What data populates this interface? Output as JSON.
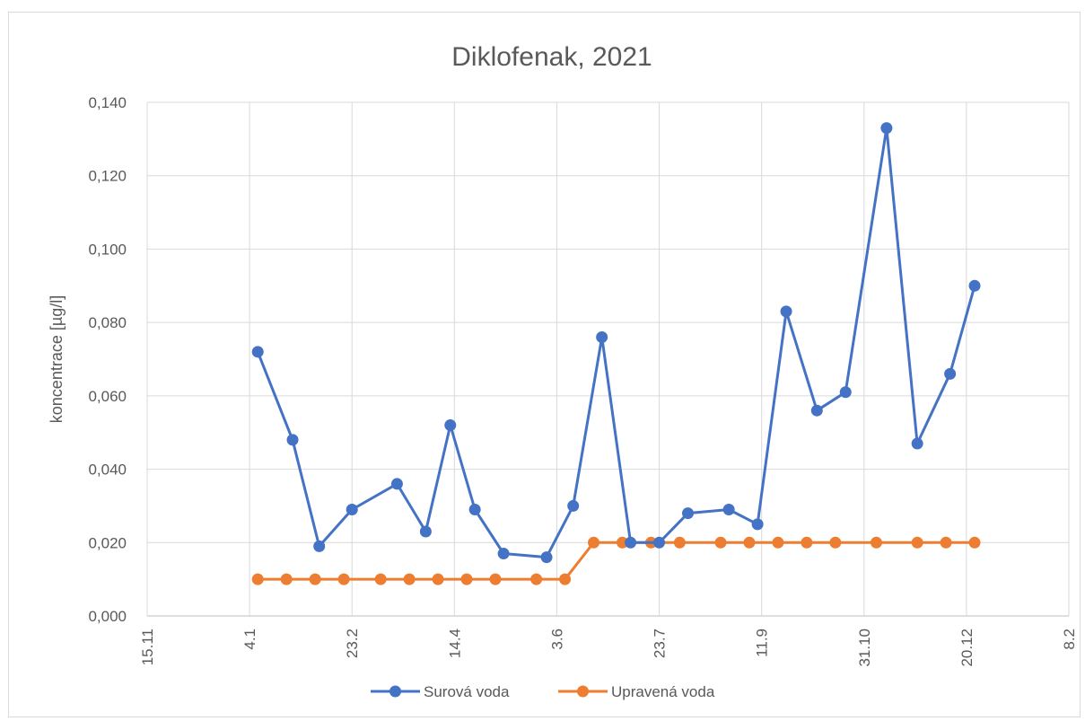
{
  "chart_data": {
    "type": "line",
    "title": "Diklofenak, 2021",
    "ylabel": "koncentrace [µg/l]",
    "xlabel": "",
    "x_tick_labels": [
      "15.11",
      "4.1",
      "23.2",
      "14.4",
      "3.6",
      "23.7",
      "11.9",
      "31.10",
      "20.12",
      "8.2"
    ],
    "y_tick_labels": [
      "0,000",
      "0,020",
      "0,040",
      "0,060",
      "0,080",
      "0,100",
      "0,120",
      "0,140"
    ],
    "x_axis": {
      "type": "date",
      "min": "2020-11-15",
      "max": "2022-02-08"
    },
    "ylim": [
      0,
      0.14
    ],
    "grid": true,
    "legend_position": "bottom",
    "series": [
      {
        "name": "Surová voda",
        "color": "#4472c4",
        "points": [
          {
            "x": "2021-01-08",
            "y": 0.072
          },
          {
            "x": "2021-01-25",
            "y": 0.048
          },
          {
            "x": "2021-02-07",
            "y": 0.019
          },
          {
            "x": "2021-02-23",
            "y": 0.029
          },
          {
            "x": "2021-03-17",
            "y": 0.036
          },
          {
            "x": "2021-03-31",
            "y": 0.023
          },
          {
            "x": "2021-04-12",
            "y": 0.052
          },
          {
            "x": "2021-04-24",
            "y": 0.029
          },
          {
            "x": "2021-05-08",
            "y": 0.017
          },
          {
            "x": "2021-05-29",
            "y": 0.016
          },
          {
            "x": "2021-06-11",
            "y": 0.03
          },
          {
            "x": "2021-06-25",
            "y": 0.076
          },
          {
            "x": "2021-07-09",
            "y": 0.02
          },
          {
            "x": "2021-07-23",
            "y": 0.02
          },
          {
            "x": "2021-08-06",
            "y": 0.028
          },
          {
            "x": "2021-08-26",
            "y": 0.029
          },
          {
            "x": "2021-09-09",
            "y": 0.025
          },
          {
            "x": "2021-09-23",
            "y": 0.083
          },
          {
            "x": "2021-10-08",
            "y": 0.056
          },
          {
            "x": "2021-10-22",
            "y": 0.061
          },
          {
            "x": "2021-11-11",
            "y": 0.133
          },
          {
            "x": "2021-11-26",
            "y": 0.047
          },
          {
            "x": "2021-12-12",
            "y": 0.066
          },
          {
            "x": "2021-12-24",
            "y": 0.09
          }
        ]
      },
      {
        "name": "Upravená voda",
        "color": "#ed7d31",
        "points": [
          {
            "x": "2021-01-08",
            "y": 0.01
          },
          {
            "x": "2021-01-22",
            "y": 0.01
          },
          {
            "x": "2021-02-05",
            "y": 0.01
          },
          {
            "x": "2021-02-19",
            "y": 0.01
          },
          {
            "x": "2021-03-09",
            "y": 0.01
          },
          {
            "x": "2021-03-23",
            "y": 0.01
          },
          {
            "x": "2021-04-06",
            "y": 0.01
          },
          {
            "x": "2021-04-20",
            "y": 0.01
          },
          {
            "x": "2021-05-04",
            "y": 0.01
          },
          {
            "x": "2021-05-24",
            "y": 0.01
          },
          {
            "x": "2021-06-07",
            "y": 0.01
          },
          {
            "x": "2021-06-21",
            "y": 0.02
          },
          {
            "x": "2021-07-05",
            "y": 0.02
          },
          {
            "x": "2021-07-19",
            "y": 0.02
          },
          {
            "x": "2021-08-02",
            "y": 0.02
          },
          {
            "x": "2021-08-22",
            "y": 0.02
          },
          {
            "x": "2021-09-05",
            "y": 0.02
          },
          {
            "x": "2021-09-19",
            "y": 0.02
          },
          {
            "x": "2021-10-03",
            "y": 0.02
          },
          {
            "x": "2021-10-17",
            "y": 0.02
          },
          {
            "x": "2021-11-06",
            "y": 0.02
          },
          {
            "x": "2021-11-26",
            "y": 0.02
          },
          {
            "x": "2021-12-10",
            "y": 0.02
          },
          {
            "x": "2021-12-24",
            "y": 0.02
          }
        ]
      }
    ]
  }
}
